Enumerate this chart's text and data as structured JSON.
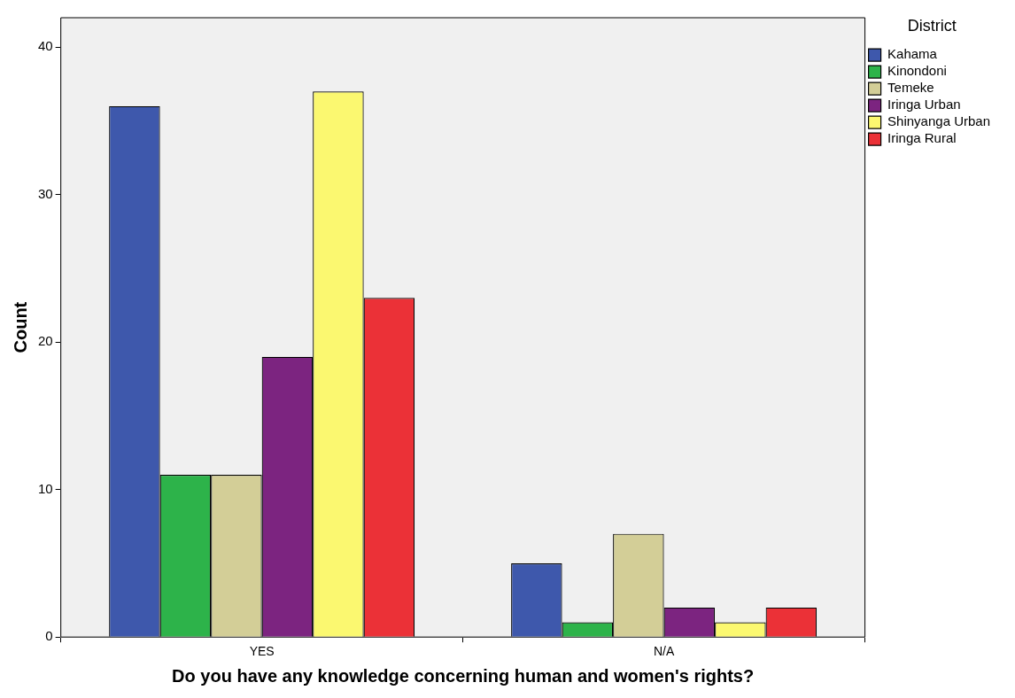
{
  "chart_data": {
    "type": "bar",
    "xlabel": "Do you have any knowledge concerning human and women's rights?",
    "ylabel": "Count",
    "legend_title": "District",
    "categories": [
      "YES",
      "N/A"
    ],
    "series": [
      {
        "name": "Kahama",
        "color": "#3e58ac",
        "values": [
          36,
          5
        ]
      },
      {
        "name": "Kinondoni",
        "color": "#2db34a",
        "values": [
          11,
          1
        ]
      },
      {
        "name": "Temeke",
        "color": "#d3ce97",
        "values": [
          11,
          7
        ]
      },
      {
        "name": "Iringa Urban",
        "color": "#7c2480",
        "values": [
          19,
          2
        ]
      },
      {
        "name": "Shinyanga Urban",
        "color": "#fbf870",
        "values": [
          37,
          1
        ]
      },
      {
        "name": "Iringa Rural",
        "color": "#eb3137",
        "values": [
          23,
          2
        ]
      }
    ],
    "ylim": [
      0,
      42
    ],
    "yticks": [
      0,
      10,
      20,
      30,
      40
    ],
    "grid": false,
    "legend": "top right"
  }
}
